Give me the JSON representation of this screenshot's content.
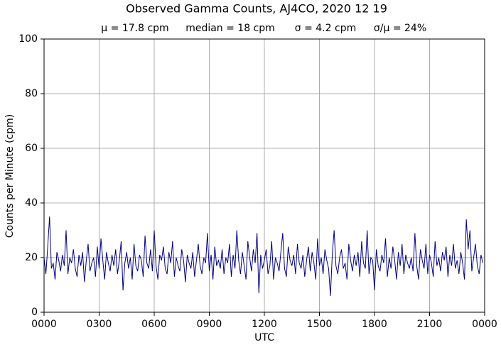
{
  "chart_data": {
    "type": "line",
    "title": "Observed Gamma Counts, AJ4CO, 2020 12 19",
    "stats": [
      "μ = 17.8 cpm",
      "median = 18 cpm",
      "σ = 4.2 cpm",
      "σ/μ = 24%"
    ],
    "x_label": "UTC",
    "y_label": "Counts per Minute (cpm)",
    "color": "#000080",
    "grid": true,
    "xlim": [
      0,
      1440
    ],
    "xticks": [
      {
        "value": 0,
        "label": "0000"
      },
      {
        "value": 180,
        "label": "0300"
      },
      {
        "value": 360,
        "label": "0600"
      },
      {
        "value": 540,
        "label": "0900"
      },
      {
        "value": 720,
        "label": "1200"
      },
      {
        "value": 900,
        "label": "1500"
      },
      {
        "value": 1080,
        "label": "1800"
      },
      {
        "value": 1260,
        "label": "2100"
      },
      {
        "value": 1440,
        "label": "0000"
      }
    ],
    "ylim": [
      0,
      100
    ],
    "yticks": [
      0,
      20,
      40,
      60,
      80,
      100
    ],
    "x": [
      0,
      6,
      12,
      18,
      24,
      30,
      36,
      42,
      48,
      54,
      60,
      66,
      72,
      78,
      84,
      90,
      96,
      102,
      108,
      114,
      120,
      126,
      132,
      138,
      144,
      150,
      156,
      162,
      168,
      174,
      180,
      186,
      192,
      198,
      204,
      210,
      216,
      222,
      228,
      234,
      240,
      246,
      252,
      258,
      264,
      270,
      276,
      282,
      288,
      294,
      300,
      306,
      312,
      318,
      324,
      330,
      336,
      342,
      348,
      354,
      360,
      366,
      372,
      378,
      384,
      390,
      396,
      402,
      408,
      414,
      420,
      426,
      432,
      438,
      444,
      450,
      456,
      462,
      468,
      474,
      480,
      486,
      492,
      498,
      504,
      510,
      516,
      522,
      528,
      534,
      540,
      546,
      552,
      558,
      564,
      570,
      576,
      582,
      588,
      594,
      600,
      606,
      612,
      618,
      624,
      630,
      636,
      642,
      648,
      654,
      660,
      666,
      672,
      678,
      684,
      690,
      696,
      702,
      708,
      714,
      720,
      726,
      732,
      738,
      744,
      750,
      756,
      762,
      768,
      774,
      780,
      786,
      792,
      798,
      804,
      810,
      816,
      822,
      828,
      834,
      840,
      846,
      852,
      858,
      864,
      870,
      876,
      882,
      888,
      894,
      900,
      906,
      912,
      918,
      924,
      930,
      936,
      942,
      948,
      954,
      960,
      966,
      972,
      978,
      984,
      990,
      996,
      1002,
      1008,
      1014,
      1020,
      1026,
      1032,
      1038,
      1044,
      1050,
      1056,
      1062,
      1068,
      1074,
      1080,
      1086,
      1092,
      1098,
      1104,
      1110,
      1116,
      1122,
      1128,
      1134,
      1140,
      1146,
      1152,
      1158,
      1164,
      1170,
      1176,
      1182,
      1188,
      1194,
      1200,
      1206,
      1212,
      1218,
      1224,
      1230,
      1236,
      1242,
      1248,
      1254,
      1260,
      1266,
      1272,
      1278,
      1284,
      1290,
      1296,
      1302,
      1308,
      1314,
      1320,
      1326,
      1332,
      1338,
      1344,
      1350,
      1356,
      1362,
      1368,
      1374,
      1380,
      1386,
      1392,
      1398,
      1404,
      1410,
      1416,
      1422,
      1428,
      1434
    ],
    "values": [
      20,
      14,
      24,
      35,
      16,
      18,
      12,
      22,
      19,
      15,
      21,
      17,
      30,
      14,
      20,
      18,
      23,
      16,
      13,
      21,
      17,
      22,
      11,
      19,
      25,
      15,
      18,
      20,
      13,
      24,
      16,
      27,
      19,
      12,
      22,
      18,
      15,
      21,
      17,
      23,
      14,
      19,
      26,
      8,
      18,
      22,
      16,
      20,
      12,
      25,
      17,
      15,
      21,
      19,
      13,
      28,
      18,
      16,
      23,
      15,
      30,
      17,
      12,
      21,
      19,
      24,
      16,
      14,
      22,
      18,
      26,
      13,
      20,
      17,
      15,
      23,
      19,
      11,
      21,
      18,
      16,
      22,
      13,
      19,
      25,
      17,
      14,
      20,
      18,
      29,
      15,
      21,
      12,
      24,
      17,
      19,
      16,
      23,
      14,
      20,
      18,
      25,
      13,
      21,
      16,
      30,
      19,
      14,
      22,
      17,
      12,
      26,
      20,
      15,
      23,
      18,
      29,
      7,
      21,
      16,
      19,
      23,
      14,
      17,
      26,
      12,
      20,
      18,
      15,
      22,
      29,
      16,
      13,
      24,
      19,
      17,
      21,
      14,
      25,
      18,
      16,
      21,
      13,
      19,
      24,
      15,
      22,
      18,
      12,
      27,
      17,
      20,
      14,
      23,
      19,
      16,
      6,
      21,
      30,
      17,
      14,
      20,
      23,
      16,
      18,
      12,
      25,
      19,
      15,
      21,
      17,
      22,
      13,
      26,
      18,
      16,
      30,
      14,
      20,
      19,
      8,
      23,
      17,
      15,
      21,
      18,
      27,
      13,
      20,
      16,
      24,
      19,
      12,
      22,
      17,
      25,
      14,
      21,
      18,
      16,
      20,
      15,
      29,
      17,
      12,
      23,
      19,
      16,
      25,
      14,
      21,
      18,
      13,
      26,
      17,
      20,
      15,
      22,
      19,
      24,
      13,
      21,
      17,
      25,
      16,
      19,
      14,
      22,
      18,
      12,
      34,
      23,
      30,
      15,
      20,
      25,
      17,
      14,
      21,
      18
    ]
  }
}
